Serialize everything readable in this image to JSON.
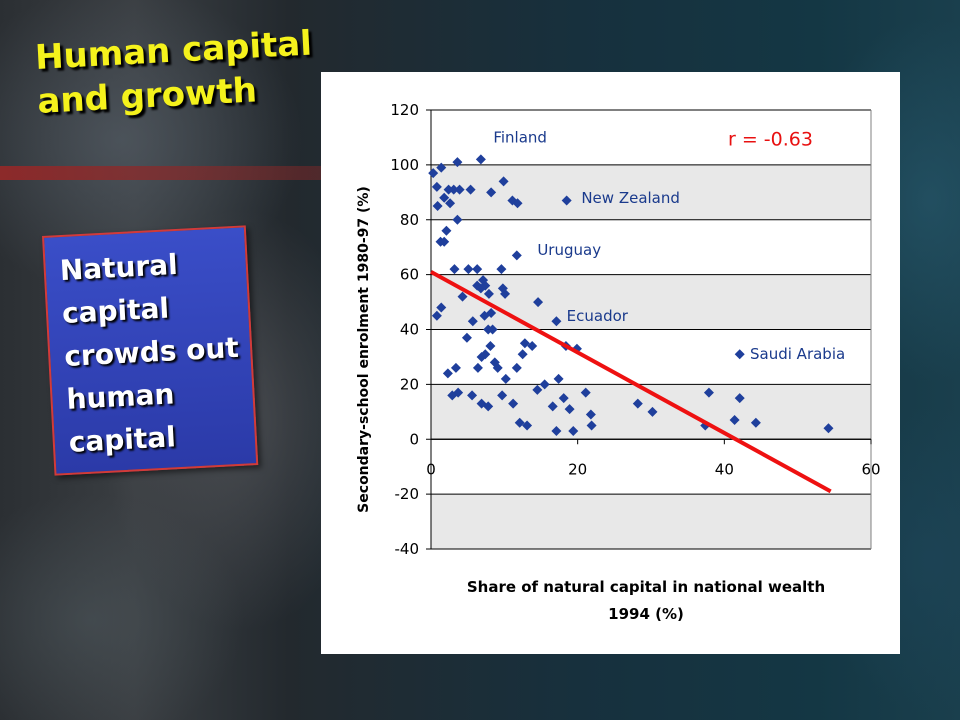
{
  "slide": {
    "title": "Human capital and growth",
    "callout": "Natural\ncapital\ncrowds out\nhuman\ncapital"
  },
  "chart_data": {
    "type": "scatter",
    "title": "",
    "xlabel_line1": "Share of natural capital in national wealth",
    "xlabel_line2": "1994 (%)",
    "ylabel": "Secondary-school enrolment 1980-97 (%)",
    "xlim": [
      0,
      60
    ],
    "ylim": [
      -40,
      120
    ],
    "x_ticks": [
      0,
      20,
      40,
      60
    ],
    "y_ticks": [
      -40,
      -20,
      0,
      20,
      40,
      60,
      80,
      100,
      120
    ],
    "grid": "horizontal",
    "correlation_label": "r = -0.63",
    "colors": {
      "points": "#1f3f9c",
      "trend": "#ee1111",
      "text": "#e81010",
      "band_light": "#ffffff",
      "band_dark": "#e8e8e8"
    },
    "trendline": {
      "x": [
        0,
        54.5
      ],
      "y": [
        61,
        -19
      ]
    },
    "annotations": [
      {
        "label": "Finland",
        "x": 8.5,
        "y": 110
      },
      {
        "label": "New Zealand",
        "x": 20.5,
        "y": 88
      },
      {
        "label": "Uruguay",
        "x": 14.5,
        "y": 69
      },
      {
        "label": "Ecuador",
        "x": 18.5,
        "y": 45
      },
      {
        "label": "Saudi Arabia",
        "x": 43.5,
        "y": 31
      }
    ],
    "points": [
      [
        0.3,
        97
      ],
      [
        0.8,
        92
      ],
      [
        1.4,
        99
      ],
      [
        0.9,
        85
      ],
      [
        1.8,
        88
      ],
      [
        1.3,
        72
      ],
      [
        2.1,
        76
      ],
      [
        2.6,
        86
      ],
      [
        3.1,
        91
      ],
      [
        3.6,
        80
      ],
      [
        3.9,
        91
      ],
      [
        3.6,
        101
      ],
      [
        5.4,
        91
      ],
      [
        6.8,
        102
      ],
      [
        1.8,
        72
      ],
      [
        2.4,
        91
      ],
      [
        8.2,
        90
      ],
      [
        9.9,
        94
      ],
      [
        11.1,
        87
      ],
      [
        11.8,
        86
      ],
      [
        18.5,
        87
      ],
      [
        9.6,
        62
      ],
      [
        5.1,
        62
      ],
      [
        6.3,
        62
      ],
      [
        11.7,
        67
      ],
      [
        0.8,
        45
      ],
      [
        1.4,
        48
      ],
      [
        2.3,
        24
      ],
      [
        3.4,
        26
      ],
      [
        3.7,
        17
      ],
      [
        2.9,
        16
      ],
      [
        4.3,
        52
      ],
      [
        4.9,
        37
      ],
      [
        5.7,
        43
      ],
      [
        6.3,
        56
      ],
      [
        6.8,
        55
      ],
      [
        7.1,
        58
      ],
      [
        7.4,
        56
      ],
      [
        7.9,
        53
      ],
      [
        8.2,
        46
      ],
      [
        7.8,
        40
      ],
      [
        7.3,
        45
      ],
      [
        6.9,
        30
      ],
      [
        8.1,
        34
      ],
      [
        8.4,
        40
      ],
      [
        9.1,
        26
      ],
      [
        8.7,
        28
      ],
      [
        7.4,
        31
      ],
      [
        6.4,
        26
      ],
      [
        6.9,
        13
      ],
      [
        7.8,
        12
      ],
      [
        5.6,
        16
      ],
      [
        9.7,
        16
      ],
      [
        10.2,
        22
      ],
      [
        10.1,
        53
      ],
      [
        11.7,
        26
      ],
      [
        11.2,
        13
      ],
      [
        12.1,
        6
      ],
      [
        13.1,
        5
      ],
      [
        12.5,
        31
      ],
      [
        12.8,
        35
      ],
      [
        13.8,
        34
      ],
      [
        14.5,
        18
      ],
      [
        15.5,
        20
      ],
      [
        14.6,
        50
      ],
      [
        16.6,
        12
      ],
      [
        17.1,
        43
      ],
      [
        17.4,
        22
      ],
      [
        18.4,
        34
      ],
      [
        18.1,
        15
      ],
      [
        18.9,
        11
      ],
      [
        17.1,
        3
      ],
      [
        19.9,
        33
      ],
      [
        19.4,
        3
      ],
      [
        21.1,
        17
      ],
      [
        21.8,
        9
      ],
      [
        21.9,
        5
      ],
      [
        28.2,
        13
      ],
      [
        30.2,
        10
      ],
      [
        37.4,
        5
      ],
      [
        37.9,
        17
      ],
      [
        41.4,
        7
      ],
      [
        42.1,
        15
      ],
      [
        44.3,
        6
      ],
      [
        54.2,
        4
      ],
      [
        9.8,
        55
      ],
      [
        42.1,
        31
      ],
      [
        3.2,
        62
      ]
    ]
  }
}
